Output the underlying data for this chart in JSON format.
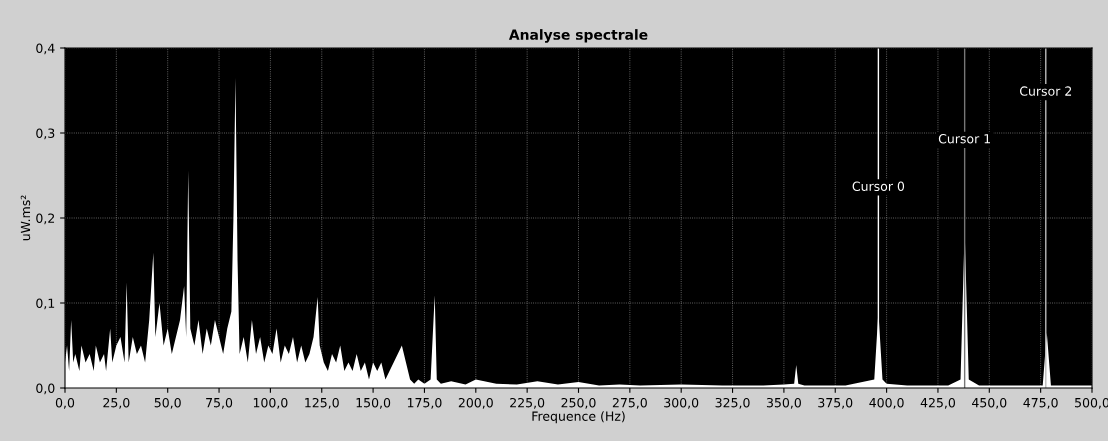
{
  "chart_data": {
    "type": "area",
    "title": "Analyse spectrale",
    "xlabel": "Frequence (Hz)",
    "ylabel": "uW.ms²",
    "series": [
      {
        "color": "#ffffff",
        "x": [
          0,
          1,
          2,
          3,
          4,
          5,
          7,
          8,
          10,
          12,
          14,
          15,
          17,
          19,
          20,
          22,
          23,
          25,
          27,
          29,
          30,
          31,
          33,
          35,
          37,
          39,
          41,
          43,
          44,
          46,
          48,
          50,
          52,
          54,
          56,
          58,
          59,
          60,
          61,
          63,
          65,
          67,
          69,
          71,
          73,
          75,
          77,
          79,
          81,
          82,
          83,
          84,
          85,
          87,
          89,
          91,
          93,
          95,
          97,
          99,
          101,
          103,
          105,
          107,
          109,
          111,
          113,
          115,
          117,
          119,
          121,
          123,
          124,
          126,
          128,
          130,
          132,
          134,
          136,
          138,
          140,
          142,
          144,
          146,
          148,
          150,
          152,
          154,
          156,
          158,
          160,
          162,
          164,
          166,
          168,
          170,
          172,
          175,
          178,
          180,
          181,
          183,
          188,
          195,
          200,
          210,
          220,
          230,
          240,
          250,
          260,
          270,
          280,
          300,
          320,
          340,
          350,
          355,
          356,
          357,
          360,
          380,
          394,
          396,
          398,
          400,
          410,
          420,
          430,
          436,
          438,
          440,
          445,
          460,
          470,
          476,
          478,
          480,
          490,
          500
        ],
        "values": [
          0.03,
          0.05,
          0.02,
          0.08,
          0.03,
          0.04,
          0.02,
          0.05,
          0.03,
          0.04,
          0.02,
          0.05,
          0.03,
          0.04,
          0.02,
          0.07,
          0.03,
          0.05,
          0.06,
          0.03,
          0.124,
          0.03,
          0.06,
          0.04,
          0.05,
          0.03,
          0.08,
          0.159,
          0.06,
          0.1,
          0.05,
          0.07,
          0.04,
          0.06,
          0.08,
          0.12,
          0.06,
          0.256,
          0.07,
          0.05,
          0.08,
          0.04,
          0.07,
          0.05,
          0.08,
          0.06,
          0.04,
          0.07,
          0.09,
          0.2,
          0.365,
          0.15,
          0.04,
          0.06,
          0.03,
          0.08,
          0.04,
          0.06,
          0.03,
          0.05,
          0.04,
          0.07,
          0.03,
          0.05,
          0.04,
          0.06,
          0.03,
          0.05,
          0.03,
          0.04,
          0.06,
          0.107,
          0.05,
          0.03,
          0.02,
          0.04,
          0.03,
          0.05,
          0.02,
          0.03,
          0.02,
          0.04,
          0.02,
          0.03,
          0.01,
          0.03,
          0.02,
          0.03,
          0.01,
          0.02,
          0.03,
          0.04,
          0.05,
          0.03,
          0.01,
          0.005,
          0.01,
          0.005,
          0.01,
          0.109,
          0.01,
          0.005,
          0.008,
          0.004,
          0.01,
          0.005,
          0.004,
          0.008,
          0.004,
          0.007,
          0.003,
          0.004,
          0.003,
          0.004,
          0.003,
          0.003,
          0.004,
          0.005,
          0.027,
          0.005,
          0.003,
          0.003,
          0.01,
          0.09,
          0.01,
          0.005,
          0.003,
          0.003,
          0.003,
          0.01,
          0.186,
          0.01,
          0.003,
          0.003,
          0.003,
          0.003,
          0.065,
          0.003,
          0.003,
          0.003
        ]
      }
    ],
    "xlim": [
      0,
      500
    ],
    "xticks": [
      {
        "value": 0,
        "label": "0,0"
      },
      {
        "value": 25,
        "label": "25,0"
      },
      {
        "value": 50,
        "label": "50,0"
      },
      {
        "value": 75,
        "label": "75,0"
      },
      {
        "value": 100,
        "label": "100,0"
      },
      {
        "value": 125,
        "label": "125,0"
      },
      {
        "value": 150,
        "label": "150,0"
      },
      {
        "value": 175,
        "label": "175,0"
      },
      {
        "value": 200,
        "label": "200,0"
      },
      {
        "value": 225,
        "label": "225,0"
      },
      {
        "value": 250,
        "label": "250,0"
      },
      {
        "value": 275,
        "label": "275,0"
      },
      {
        "value": 300,
        "label": "300,0"
      },
      {
        "value": 325,
        "label": "325,0"
      },
      {
        "value": 350,
        "label": "350,0"
      },
      {
        "value": 375,
        "label": "375,0"
      },
      {
        "value": 400,
        "label": "400,0"
      },
      {
        "value": 425,
        "label": "425,0"
      },
      {
        "value": 450,
        "label": "450,0"
      },
      {
        "value": 475,
        "label": "475,0"
      },
      {
        "value": 500,
        "label": "500,0"
      }
    ],
    "ylim": [
      0,
      0.4
    ],
    "yticks": [
      {
        "value": 0,
        "label": "0,0"
      },
      {
        "value": 0.1,
        "label": "0,1"
      },
      {
        "value": 0.2,
        "label": "0,2"
      },
      {
        "value": 0.3,
        "label": "0,3"
      },
      {
        "value": 0.4,
        "label": "0,4"
      }
    ],
    "grid": true,
    "ref_lines": [
      {
        "axis": "x",
        "value": 396,
        "color": "#ffffff",
        "label": "Cursor 0"
      },
      {
        "axis": "x",
        "value": 438,
        "color": "#777777",
        "label": "Cursor 1"
      },
      {
        "axis": "x",
        "value": 477.5,
        "color": "#bbbbbb",
        "label": "Cursor 2"
      }
    ]
  }
}
